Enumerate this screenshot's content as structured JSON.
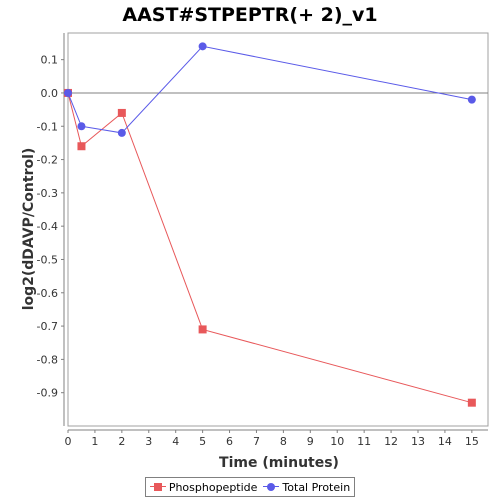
{
  "chart_data": {
    "type": "line",
    "title": "AAST#STPEPTR(+ 2)_v1",
    "xlabel": "Time (minutes)",
    "ylabel": "log2(dDAVP/Control)",
    "xlim": [
      0,
      15.6
    ],
    "ylim": [
      -1.0,
      0.18
    ],
    "x_ticks": [
      0,
      1,
      2,
      3,
      4,
      5,
      6,
      7,
      8,
      9,
      10,
      11,
      12,
      13,
      14,
      15
    ],
    "y_ticks": [
      0.1,
      0.0,
      -0.1,
      -0.2,
      -0.3,
      -0.4,
      -0.5,
      -0.6,
      -0.7,
      -0.8,
      -0.9
    ],
    "y_tick_labels": [
      "0.1",
      "0.0",
      "-0.1",
      "-0.2",
      "-0.3",
      "-0.4",
      "-0.5",
      "-0.6",
      "-0.7",
      "-0.8",
      "-0.9"
    ],
    "grid": false,
    "legend_position": "bottom",
    "series": [
      {
        "name": "Phosphopeptide",
        "color": "#e8585a",
        "marker": "square",
        "x": [
          0,
          0.5,
          2,
          5,
          15
        ],
        "y": [
          0.0,
          -0.16,
          -0.06,
          -0.71,
          -0.93
        ]
      },
      {
        "name": "Total Protein",
        "color": "#5a5ae8",
        "marker": "circle",
        "x": [
          0,
          0.5,
          2,
          5,
          15
        ],
        "y": [
          0.0,
          -0.1,
          -0.12,
          0.14,
          -0.02
        ]
      }
    ]
  }
}
